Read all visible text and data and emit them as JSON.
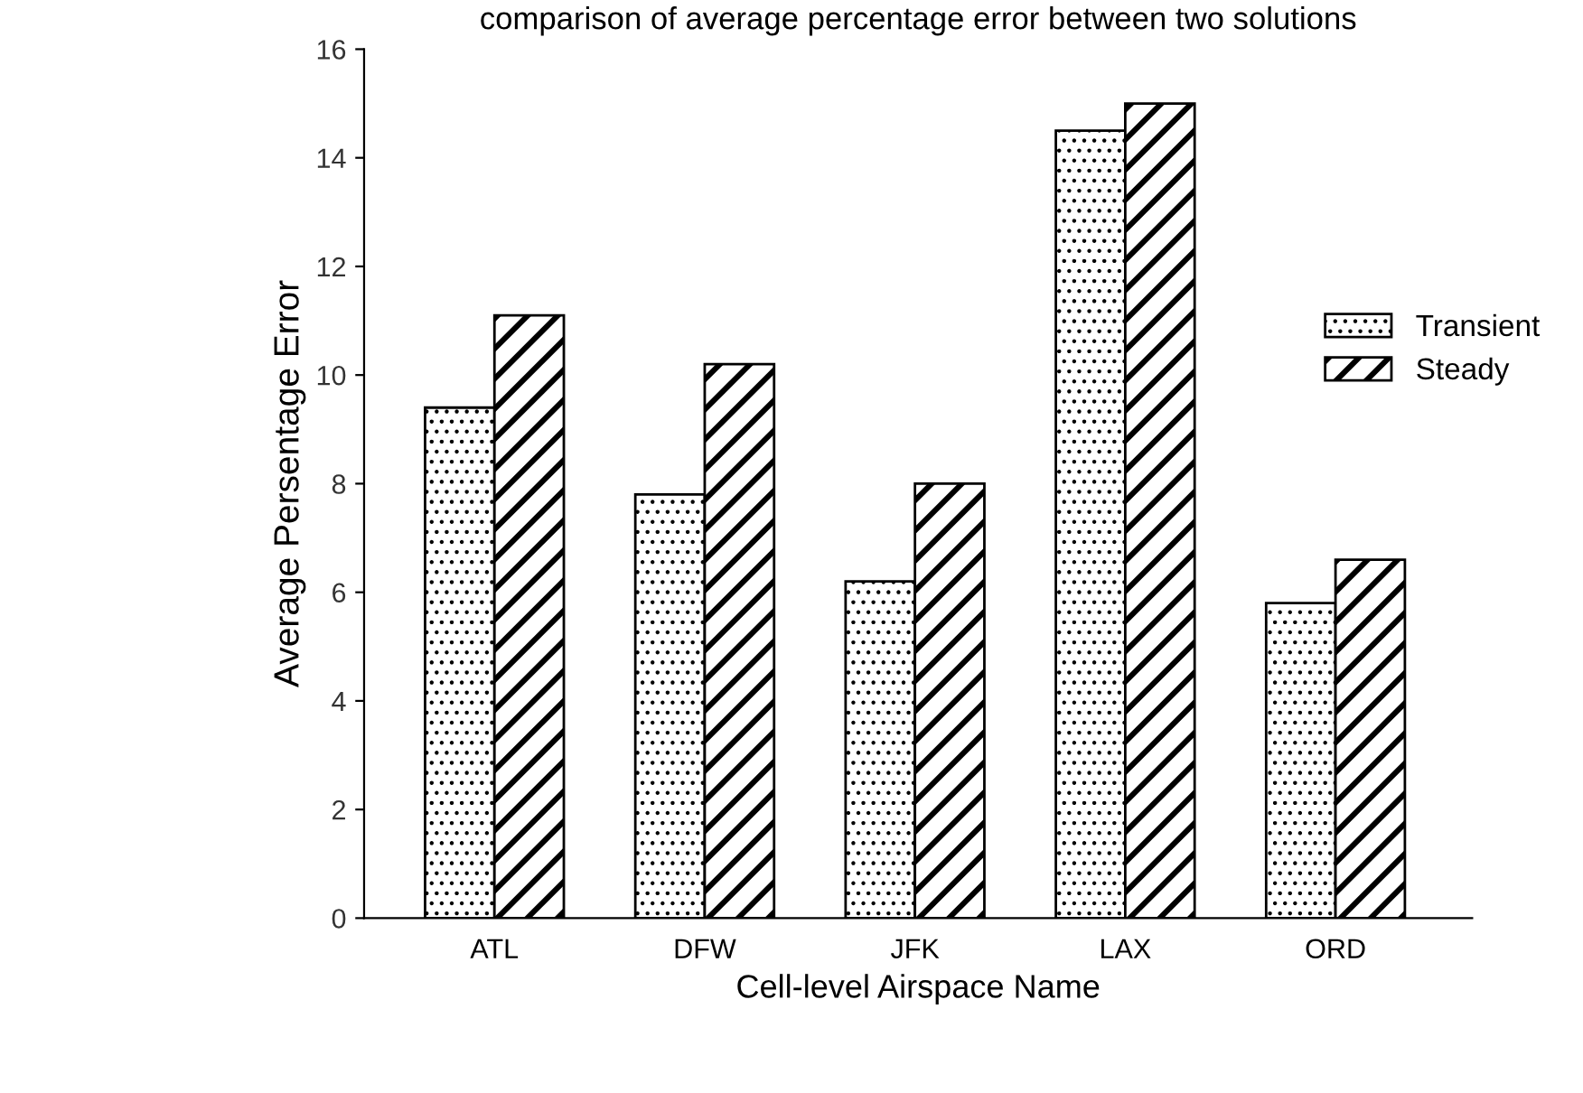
{
  "chart_data": {
    "type": "bar",
    "title": "comparison of average percentage error between two solutions",
    "xlabel": "Cell-level Airspace Name",
    "ylabel": "Average Persentage Error",
    "categories": [
      "ATL",
      "DFW",
      "JFK",
      "LAX",
      "ORD"
    ],
    "series": [
      {
        "name": "Transient",
        "color": "#000000",
        "values": [
          9.4,
          7.8,
          6.2,
          14.5,
          5.8
        ]
      },
      {
        "name": "Steady",
        "color": "#000000",
        "values": [
          11.1,
          10.2,
          8.0,
          15.0,
          6.6
        ]
      }
    ],
    "ylim": [
      0,
      16
    ],
    "yticks": [
      0,
      2,
      4,
      6,
      8,
      10,
      12,
      14,
      16
    ],
    "grid": false,
    "legend": "right"
  }
}
